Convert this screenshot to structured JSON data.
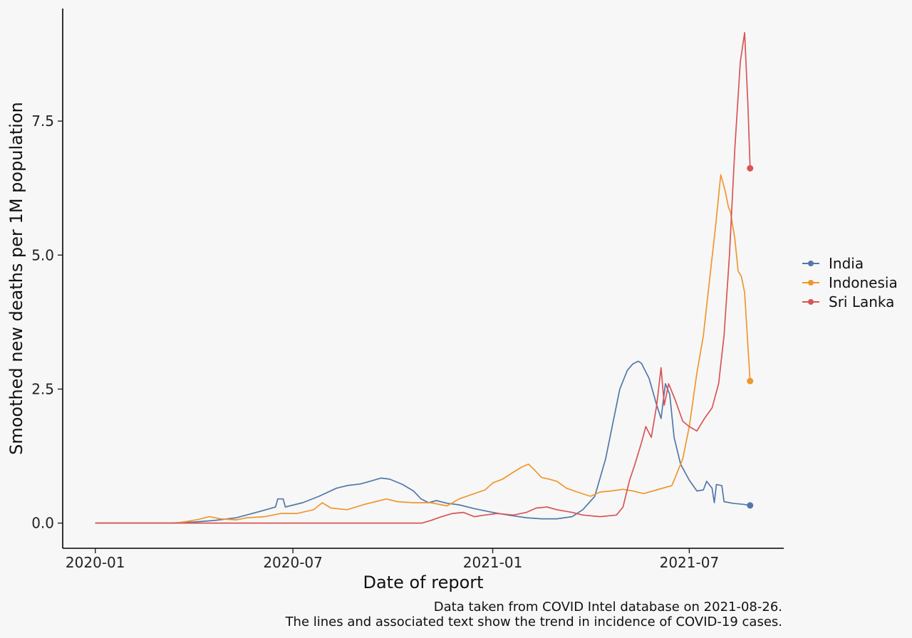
{
  "chart_data": {
    "type": "line",
    "xlabel": "Date of report",
    "ylabel": "Smoothed new deaths per 1M population",
    "x_ticks": [
      "2020-01",
      "2020-07",
      "2021-01",
      "2021-07"
    ],
    "y_ticks": [
      "0.0",
      "2.5",
      "5.0",
      "7.5"
    ],
    "xlim": [
      "2019-12-02",
      "2021-09-26"
    ],
    "ylim": [
      -0.47,
      9.6
    ],
    "grid": false,
    "legend_position": "right",
    "caption": [
      "Data taken from COVID Intel database on 2021-08-26.",
      "The lines and associated text show the trend in incidence of COVID-19 cases."
    ],
    "series": [
      {
        "name": "India",
        "color": "#5278a8",
        "end_marker": true,
        "points": [
          [
            "2020-01-01",
            0
          ],
          [
            "2020-03-10",
            0
          ],
          [
            "2020-04-01",
            0.02
          ],
          [
            "2020-04-20",
            0.05
          ],
          [
            "2020-05-10",
            0.1
          ],
          [
            "2020-06-01",
            0.22
          ],
          [
            "2020-06-15",
            0.3
          ],
          [
            "2020-06-17",
            0.45
          ],
          [
            "2020-06-22",
            0.45
          ],
          [
            "2020-06-24",
            0.3
          ],
          [
            "2020-07-10",
            0.38
          ],
          [
            "2020-07-25",
            0.5
          ],
          [
            "2020-08-10",
            0.65
          ],
          [
            "2020-08-20",
            0.7
          ],
          [
            "2020-09-01",
            0.73
          ],
          [
            "2020-09-10",
            0.78
          ],
          [
            "2020-09-20",
            0.84
          ],
          [
            "2020-09-28",
            0.82
          ],
          [
            "2020-10-10",
            0.72
          ],
          [
            "2020-10-20",
            0.6
          ],
          [
            "2020-10-27",
            0.45
          ],
          [
            "2020-11-03",
            0.38
          ],
          [
            "2020-11-10",
            0.42
          ],
          [
            "2020-11-20",
            0.37
          ],
          [
            "2020-12-01",
            0.34
          ],
          [
            "2020-12-15",
            0.27
          ],
          [
            "2021-01-01",
            0.2
          ],
          [
            "2021-01-15",
            0.15
          ],
          [
            "2021-02-01",
            0.1
          ],
          [
            "2021-02-15",
            0.08
          ],
          [
            "2021-03-01",
            0.08
          ],
          [
            "2021-03-15",
            0.12
          ],
          [
            "2021-03-25",
            0.25
          ],
          [
            "2021-04-05",
            0.5
          ],
          [
            "2021-04-15",
            1.2
          ],
          [
            "2021-04-22",
            1.9
          ],
          [
            "2021-04-28",
            2.5
          ],
          [
            "2021-05-05",
            2.85
          ],
          [
            "2021-05-10",
            2.97
          ],
          [
            "2021-05-15",
            3.02
          ],
          [
            "2021-05-18",
            2.98
          ],
          [
            "2021-05-25",
            2.7
          ],
          [
            "2021-06-01",
            2.2
          ],
          [
            "2021-06-05",
            1.95
          ],
          [
            "2021-06-09",
            2.6
          ],
          [
            "2021-06-13",
            2.4
          ],
          [
            "2021-06-17",
            1.6
          ],
          [
            "2021-06-23",
            1.1
          ],
          [
            "2021-07-01",
            0.8
          ],
          [
            "2021-07-08",
            0.6
          ],
          [
            "2021-07-14",
            0.62
          ],
          [
            "2021-07-17",
            0.78
          ],
          [
            "2021-07-22",
            0.65
          ],
          [
            "2021-07-24",
            0.38
          ],
          [
            "2021-07-26",
            0.72
          ],
          [
            "2021-07-31",
            0.7
          ],
          [
            "2021-08-02",
            0.4
          ],
          [
            "2021-08-10",
            0.37
          ],
          [
            "2021-08-20",
            0.35
          ],
          [
            "2021-08-26",
            0.33
          ]
        ]
      },
      {
        "name": "Indonesia",
        "color": "#f0962e",
        "end_marker": true,
        "points": [
          [
            "2020-01-01",
            0
          ],
          [
            "2020-03-15",
            0
          ],
          [
            "2020-03-25",
            0.03
          ],
          [
            "2020-04-05",
            0.07
          ],
          [
            "2020-04-15",
            0.12
          ],
          [
            "2020-04-25",
            0.08
          ],
          [
            "2020-05-10",
            0.06
          ],
          [
            "2020-05-20",
            0.1
          ],
          [
            "2020-06-05",
            0.12
          ],
          [
            "2020-06-20",
            0.18
          ],
          [
            "2020-07-05",
            0.18
          ],
          [
            "2020-07-20",
            0.25
          ],
          [
            "2020-07-28",
            0.38
          ],
          [
            "2020-08-05",
            0.28
          ],
          [
            "2020-08-20",
            0.25
          ],
          [
            "2020-09-05",
            0.35
          ],
          [
            "2020-09-15",
            0.4
          ],
          [
            "2020-09-25",
            0.45
          ],
          [
            "2020-10-05",
            0.4
          ],
          [
            "2020-10-20",
            0.38
          ],
          [
            "2020-11-05",
            0.38
          ],
          [
            "2020-11-20",
            0.32
          ],
          [
            "2020-12-01",
            0.45
          ],
          [
            "2020-12-15",
            0.55
          ],
          [
            "2020-12-25",
            0.62
          ],
          [
            "2021-01-01",
            0.75
          ],
          [
            "2021-01-10",
            0.82
          ],
          [
            "2021-01-20",
            0.95
          ],
          [
            "2021-01-28",
            1.05
          ],
          [
            "2021-02-03",
            1.1
          ],
          [
            "2021-02-08",
            1.0
          ],
          [
            "2021-02-15",
            0.85
          ],
          [
            "2021-02-22",
            0.82
          ],
          [
            "2021-03-01",
            0.78
          ],
          [
            "2021-03-10",
            0.65
          ],
          [
            "2021-03-20",
            0.58
          ],
          [
            "2021-04-01",
            0.5
          ],
          [
            "2021-04-10",
            0.58
          ],
          [
            "2021-04-20",
            0.6
          ],
          [
            "2021-05-01",
            0.63
          ],
          [
            "2021-05-10",
            0.6
          ],
          [
            "2021-05-20",
            0.55
          ],
          [
            "2021-06-01",
            0.62
          ],
          [
            "2021-06-15",
            0.7
          ],
          [
            "2021-06-25",
            1.2
          ],
          [
            "2021-07-01",
            1.8
          ],
          [
            "2021-07-08",
            2.8
          ],
          [
            "2021-07-14",
            3.5
          ],
          [
            "2021-07-20",
            4.6
          ],
          [
            "2021-07-25",
            5.5
          ],
          [
            "2021-07-30",
            6.5
          ],
          [
            "2021-08-03",
            6.2
          ],
          [
            "2021-08-06",
            5.9
          ],
          [
            "2021-08-08",
            5.8
          ],
          [
            "2021-08-12",
            5.3
          ],
          [
            "2021-08-15",
            4.7
          ],
          [
            "2021-08-18",
            4.6
          ],
          [
            "2021-08-21",
            4.3
          ],
          [
            "2021-08-24",
            3.3
          ],
          [
            "2021-08-26",
            2.65
          ]
        ]
      },
      {
        "name": "Sri Lanka",
        "color": "#d95456",
        "end_marker": true,
        "points": [
          [
            "2020-01-01",
            0
          ],
          [
            "2020-04-01",
            0
          ],
          [
            "2020-06-01",
            0
          ],
          [
            "2020-09-01",
            0
          ],
          [
            "2020-10-28",
            0.0
          ],
          [
            "2020-11-05",
            0.05
          ],
          [
            "2020-11-15",
            0.12
          ],
          [
            "2020-11-25",
            0.18
          ],
          [
            "2020-12-05",
            0.2
          ],
          [
            "2020-12-15",
            0.12
          ],
          [
            "2020-12-25",
            0.15
          ],
          [
            "2021-01-05",
            0.18
          ],
          [
            "2021-01-20",
            0.15
          ],
          [
            "2021-02-01",
            0.2
          ],
          [
            "2021-02-10",
            0.28
          ],
          [
            "2021-02-20",
            0.3
          ],
          [
            "2021-03-01",
            0.25
          ],
          [
            "2021-03-15",
            0.2
          ],
          [
            "2021-03-25",
            0.15
          ],
          [
            "2021-04-10",
            0.12
          ],
          [
            "2021-04-25",
            0.15
          ],
          [
            "2021-05-01",
            0.3
          ],
          [
            "2021-05-07",
            0.8
          ],
          [
            "2021-05-12",
            1.1
          ],
          [
            "2021-05-18",
            1.5
          ],
          [
            "2021-05-22",
            1.8
          ],
          [
            "2021-05-27",
            1.6
          ],
          [
            "2021-06-01",
            2.2
          ],
          [
            "2021-06-05",
            2.9
          ],
          [
            "2021-06-08",
            2.2
          ],
          [
            "2021-06-12",
            2.6
          ],
          [
            "2021-06-18",
            2.3
          ],
          [
            "2021-06-25",
            1.9
          ],
          [
            "2021-07-01",
            1.8
          ],
          [
            "2021-07-08",
            1.72
          ],
          [
            "2021-07-15",
            1.95
          ],
          [
            "2021-07-22",
            2.15
          ],
          [
            "2021-07-28",
            2.6
          ],
          [
            "2021-08-02",
            3.5
          ],
          [
            "2021-08-07",
            5.0
          ],
          [
            "2021-08-12",
            7.0
          ],
          [
            "2021-08-17",
            8.6
          ],
          [
            "2021-08-21",
            9.15
          ],
          [
            "2021-08-24",
            7.8
          ],
          [
            "2021-08-26",
            6.62
          ]
        ]
      }
    ]
  }
}
